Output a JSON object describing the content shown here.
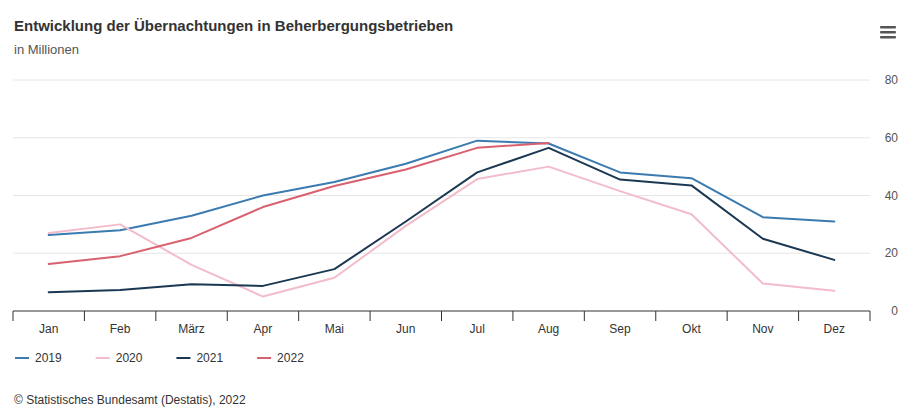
{
  "chart_data": {
    "type": "line",
    "title": "Entwicklung der Übernachtungen in Beherbergungsbetrieben",
    "subtitle": "in Millionen",
    "source": "© Statistisches Bundesamt (Destatis), 2022",
    "categories": [
      "Jan",
      "Feb",
      "März",
      "Apr",
      "Mai",
      "Jun",
      "Jul",
      "Aug",
      "Sep",
      "Okt",
      "Nov",
      "Dez"
    ],
    "series": [
      {
        "name": "2019",
        "color": "#3b7bb0",
        "values": [
          26.3,
          28,
          33,
          40,
          44.7,
          51,
          59,
          58,
          48,
          46,
          32.5,
          31
        ]
      },
      {
        "name": "2020",
        "color": "#f2bccb",
        "values": [
          27,
          30,
          16,
          5,
          11.5,
          29.5,
          45.7,
          50,
          41.5,
          33.5,
          9.5,
          7
        ]
      },
      {
        "name": "2021",
        "color": "#1b3853",
        "values": [
          6.5,
          7.3,
          9.3,
          8.7,
          14.5,
          31,
          48,
          56.5,
          45.5,
          43.5,
          25,
          17.7
        ]
      },
      {
        "name": "2022",
        "color": "#d9606f",
        "values": [
          16.3,
          19,
          25.3,
          36,
          43.3,
          49,
          56.5,
          58.2,
          null,
          null,
          null,
          null
        ]
      }
    ],
    "ylim": [
      0,
      80
    ],
    "yticks": [
      0,
      20,
      40,
      60,
      80
    ],
    "grid": true,
    "legend": "bottom"
  }
}
